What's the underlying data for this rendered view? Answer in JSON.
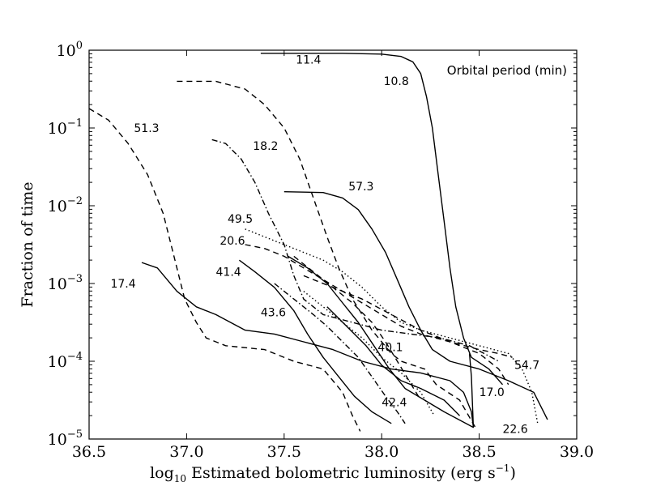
{
  "chart_data": {
    "type": "line",
    "title": "",
    "xlabel": "Estimated bolometric luminosity (erg s",
    "xlabel_prefix": "log",
    "xlabel_sub": "10",
    "xlabel_sup": "−1",
    "xlabel_suffix": ")",
    "ylabel": "Fraction of time",
    "xlim": [
      36.5,
      39.0
    ],
    "ylim_log10": [
      -5,
      0
    ],
    "yscale": "log",
    "legend_title": "Orbital period (min)",
    "x_ticks": [
      {
        "value": 36.5,
        "label": "36.5"
      },
      {
        "value": 37.0,
        "label": "37.0"
      },
      {
        "value": 37.5,
        "label": "37.5"
      },
      {
        "value": 38.0,
        "label": "38.0"
      },
      {
        "value": 38.5,
        "label": "38.5"
      },
      {
        "value": 39.0,
        "label": "39.0"
      }
    ],
    "y_ticks": [
      {
        "exp": 0,
        "base": "10",
        "sup": "0"
      },
      {
        "exp": -1,
        "base": "10",
        "sup": "−1"
      },
      {
        "exp": -2,
        "base": "10",
        "sup": "−2"
      },
      {
        "exp": -3,
        "base": "10",
        "sup": "−3"
      },
      {
        "exp": -4,
        "base": "10",
        "sup": "−4"
      },
      {
        "exp": -5,
        "base": "10",
        "sup": "−5"
      }
    ],
    "series": [
      {
        "name": "11.4",
        "style": "solid",
        "points": [
          [
            37.38,
            -0.04
          ],
          [
            37.8,
            -0.04
          ],
          [
            38.0,
            -0.05
          ],
          [
            38.1,
            -0.08
          ],
          [
            38.16,
            -0.15
          ],
          [
            38.2,
            -0.3
          ],
          [
            38.23,
            -0.6
          ],
          [
            38.26,
            -1.0
          ],
          [
            38.29,
            -1.6
          ],
          [
            38.32,
            -2.2
          ],
          [
            38.35,
            -2.8
          ],
          [
            38.38,
            -3.3
          ],
          [
            38.42,
            -3.7
          ],
          [
            38.46,
            -3.95
          ],
          [
            38.55,
            -4.1
          ],
          [
            38.62,
            -4.3
          ]
        ],
        "label_at": [
          37.56,
          -0.17
        ]
      },
      {
        "name": "10.8",
        "style": "dashed",
        "points": [
          [
            36.95,
            -0.4
          ],
          [
            37.15,
            -0.4
          ],
          [
            37.3,
            -0.5
          ],
          [
            37.4,
            -0.7
          ],
          [
            37.5,
            -1.0
          ],
          [
            37.58,
            -1.4
          ],
          [
            37.65,
            -1.9
          ],
          [
            37.72,
            -2.4
          ],
          [
            37.78,
            -2.8
          ],
          [
            37.85,
            -3.2
          ],
          [
            37.95,
            -3.6
          ],
          [
            38.05,
            -3.9
          ],
          [
            38.1,
            -4.0
          ],
          [
            38.22,
            -4.1
          ],
          [
            38.28,
            -4.3
          ],
          [
            38.4,
            -4.5
          ],
          [
            38.48,
            -4.85
          ]
        ],
        "label_at": [
          38.01,
          -0.45
        ]
      },
      {
        "name": "51.3",
        "style": "dashed",
        "points": [
          [
            36.5,
            -0.75
          ],
          [
            36.6,
            -0.9
          ],
          [
            36.7,
            -1.2
          ],
          [
            36.8,
            -1.6
          ],
          [
            36.88,
            -2.1
          ],
          [
            36.94,
            -2.7
          ],
          [
            36.99,
            -3.2
          ],
          [
            37.05,
            -3.5
          ],
          [
            37.1,
            -3.7
          ],
          [
            37.2,
            -3.8
          ],
          [
            37.4,
            -3.85
          ],
          [
            37.55,
            -4.0
          ],
          [
            37.7,
            -4.1
          ],
          [
            37.8,
            -4.4
          ],
          [
            37.85,
            -4.7
          ],
          [
            37.89,
            -4.9
          ]
        ],
        "label_at": [
          36.73,
          -1.05
        ]
      },
      {
        "name": "18.2",
        "style": "dashdot",
        "points": [
          [
            37.13,
            -1.15
          ],
          [
            37.2,
            -1.2
          ],
          [
            37.28,
            -1.4
          ],
          [
            37.35,
            -1.7
          ],
          [
            37.42,
            -2.1
          ],
          [
            37.5,
            -2.5
          ],
          [
            37.55,
            -2.9
          ],
          [
            37.6,
            -3.2
          ],
          [
            37.7,
            -3.4
          ],
          [
            37.85,
            -3.5
          ],
          [
            38.0,
            -3.6
          ],
          [
            38.15,
            -3.65
          ],
          [
            38.3,
            -3.7
          ],
          [
            38.45,
            -3.8
          ],
          [
            38.6,
            -4.0
          ]
        ],
        "label_at": [
          37.34,
          -1.28
        ]
      },
      {
        "name": "57.3",
        "style": "solid",
        "points": [
          [
            37.5,
            -1.82
          ],
          [
            37.7,
            -1.83
          ],
          [
            37.8,
            -1.9
          ],
          [
            37.88,
            -2.05
          ],
          [
            37.95,
            -2.3
          ],
          [
            38.02,
            -2.6
          ],
          [
            38.08,
            -2.95
          ],
          [
            38.14,
            -3.3
          ],
          [
            38.2,
            -3.6
          ],
          [
            38.26,
            -3.85
          ],
          [
            38.35,
            -4.0
          ],
          [
            38.5,
            -4.1
          ],
          [
            38.65,
            -4.25
          ],
          [
            38.78,
            -4.4
          ],
          [
            38.85,
            -4.75
          ]
        ],
        "label_at": [
          37.83,
          -1.8
        ]
      },
      {
        "name": "49.5",
        "style": "dotted",
        "points": [
          [
            37.3,
            -2.3
          ],
          [
            37.4,
            -2.4
          ],
          [
            37.5,
            -2.5
          ],
          [
            37.6,
            -2.6
          ],
          [
            37.7,
            -2.7
          ],
          [
            37.8,
            -2.85
          ],
          [
            37.9,
            -3.05
          ],
          [
            38.0,
            -3.3
          ],
          [
            38.1,
            -3.5
          ],
          [
            38.2,
            -3.6
          ],
          [
            38.35,
            -3.7
          ],
          [
            38.5,
            -3.8
          ],
          [
            38.65,
            -3.9
          ],
          [
            38.72,
            -4.1
          ],
          [
            38.77,
            -4.4
          ],
          [
            38.8,
            -4.8
          ]
        ],
        "label_at": [
          37.21,
          -2.22
        ]
      },
      {
        "name": "20.6",
        "style": "dashed",
        "points": [
          [
            37.3,
            -2.5
          ],
          [
            37.4,
            -2.55
          ],
          [
            37.5,
            -2.65
          ],
          [
            37.6,
            -2.8
          ],
          [
            37.7,
            -2.95
          ],
          [
            37.8,
            -3.1
          ],
          [
            37.9,
            -3.25
          ],
          [
            38.0,
            -3.4
          ],
          [
            38.1,
            -3.55
          ],
          [
            38.2,
            -3.65
          ],
          [
            38.35,
            -3.75
          ],
          [
            38.5,
            -3.9
          ],
          [
            38.6,
            -4.1
          ],
          [
            38.65,
            -4.3
          ]
        ],
        "label_at": [
          37.17,
          -2.5
        ]
      },
      {
        "name": "41.4",
        "style": "solid",
        "points": [
          [
            37.27,
            -2.7
          ],
          [
            37.35,
            -2.85
          ],
          [
            37.45,
            -3.05
          ],
          [
            37.55,
            -3.35
          ],
          [
            37.62,
            -3.65
          ],
          [
            37.7,
            -3.95
          ],
          [
            37.78,
            -4.2
          ],
          [
            37.86,
            -4.45
          ],
          [
            37.95,
            -4.65
          ],
          [
            38.05,
            -4.8
          ]
        ],
        "label_at": [
          37.15,
          -2.9
        ]
      },
      {
        "name": "17.4",
        "style": "solid",
        "points": [
          [
            36.77,
            -2.73
          ],
          [
            36.85,
            -2.8
          ],
          [
            36.95,
            -3.1
          ],
          [
            37.05,
            -3.3
          ],
          [
            37.15,
            -3.4
          ],
          [
            37.3,
            -3.6
          ],
          [
            37.45,
            -3.65
          ],
          [
            37.6,
            -3.75
          ],
          [
            37.75,
            -3.85
          ],
          [
            37.9,
            -4.0
          ],
          [
            38.05,
            -4.1
          ],
          [
            38.2,
            -4.15
          ],
          [
            38.35,
            -4.25
          ],
          [
            38.42,
            -4.4
          ],
          [
            38.46,
            -4.65
          ],
          [
            38.47,
            -4.85
          ],
          [
            38.46,
            -4.2
          ],
          [
            38.45,
            -3.9
          ]
        ],
        "label_at": [
          36.61,
          -3.05
        ]
      },
      {
        "name": "43.6",
        "style": "dashdot",
        "points": [
          [
            37.45,
            -3.0
          ],
          [
            37.55,
            -3.2
          ],
          [
            37.65,
            -3.4
          ],
          [
            37.72,
            -3.55
          ],
          [
            37.8,
            -3.75
          ],
          [
            37.88,
            -3.95
          ],
          [
            37.95,
            -4.2
          ],
          [
            38.02,
            -4.45
          ],
          [
            38.08,
            -4.65
          ],
          [
            38.12,
            -4.8
          ]
        ],
        "label_at": [
          37.38,
          -3.42
        ]
      },
      {
        "name": "40.1",
        "style": "dashed",
        "points": [
          [
            37.55,
            -2.65
          ],
          [
            37.65,
            -2.85
          ],
          [
            37.75,
            -3.05
          ],
          [
            37.85,
            -3.25
          ],
          [
            37.95,
            -3.5
          ],
          [
            38.02,
            -3.75
          ],
          [
            38.08,
            -4.0
          ],
          [
            38.14,
            -4.25
          ],
          [
            38.2,
            -4.5
          ]
        ],
        "label_at": [
          37.98,
          -3.87
        ]
      },
      {
        "name": "42.4",
        "style": "solid",
        "points": [
          [
            37.52,
            -2.65
          ],
          [
            37.62,
            -2.8
          ],
          [
            37.72,
            -3.0
          ],
          [
            37.8,
            -3.25
          ],
          [
            37.88,
            -3.5
          ],
          [
            37.96,
            -3.8
          ],
          [
            38.04,
            -4.1
          ],
          [
            38.12,
            -4.35
          ],
          [
            38.22,
            -4.5
          ],
          [
            38.32,
            -4.65
          ],
          [
            38.47,
            -4.85
          ]
        ],
        "label_at": [
          38.0,
          -4.58
        ]
      },
      {
        "name": "54.7",
        "style": "dashed",
        "points": [
          [
            37.6,
            -2.9
          ],
          [
            37.75,
            -3.05
          ],
          [
            37.9,
            -3.2
          ],
          [
            38.05,
            -3.4
          ],
          [
            38.2,
            -3.6
          ],
          [
            38.35,
            -3.75
          ],
          [
            38.5,
            -3.85
          ],
          [
            38.6,
            -3.9
          ],
          [
            38.67,
            -3.95
          ]
        ],
        "label_at": [
          38.68,
          -4.1
        ]
      },
      {
        "name": "17.0",
        "style": "solid",
        "points": [
          [
            37.72,
            -3.3
          ],
          [
            37.82,
            -3.55
          ],
          [
            37.92,
            -3.8
          ],
          [
            38.0,
            -4.05
          ],
          [
            38.1,
            -4.25
          ],
          [
            38.2,
            -4.35
          ],
          [
            38.32,
            -4.5
          ],
          [
            38.4,
            -4.7
          ]
        ],
        "label_at": [
          38.5,
          -4.45
        ]
      },
      {
        "name": "22.6",
        "style": "dotted",
        "points": [
          [
            37.6,
            -3.1
          ],
          [
            37.7,
            -3.3
          ],
          [
            37.8,
            -3.5
          ],
          [
            37.9,
            -3.7
          ],
          [
            38.0,
            -3.95
          ],
          [
            38.1,
            -4.15
          ],
          [
            38.2,
            -4.4
          ],
          [
            38.27,
            -4.7
          ]
        ],
        "label_at": [
          38.62,
          -4.92
        ]
      }
    ]
  }
}
